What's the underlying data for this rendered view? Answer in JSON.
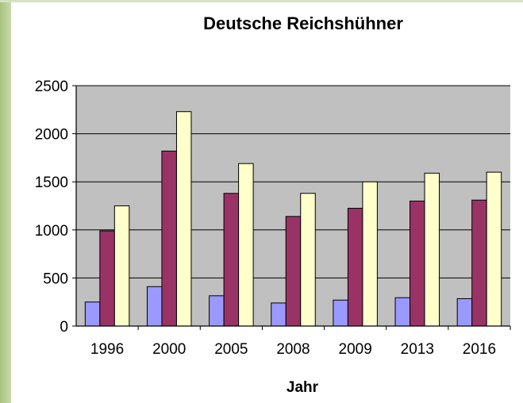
{
  "chart_data": {
    "type": "bar",
    "title": "Deutsche Reichshühner",
    "xlabel": "Jahr",
    "ylabel": "",
    "categories": [
      "1996",
      "2000",
      "2005",
      "2008",
      "2009",
      "2013",
      "2016"
    ],
    "series": [
      {
        "color": "#9999ff",
        "values": [
          250,
          410,
          315,
          240,
          270,
          295,
          285
        ]
      },
      {
        "color": "#993366",
        "values": [
          990,
          1820,
          1380,
          1140,
          1225,
          1300,
          1310
        ]
      },
      {
        "color": "#ffffcc",
        "values": [
          1250,
          2230,
          1690,
          1380,
          1500,
          1590,
          1600
        ]
      }
    ],
    "ylim": [
      0,
      2500
    ],
    "yticks": [
      "0",
      "500",
      "1000",
      "1500",
      "2000",
      "2500"
    ],
    "grid": true,
    "legend": "none",
    "plot_background": "#c0c0c0"
  }
}
